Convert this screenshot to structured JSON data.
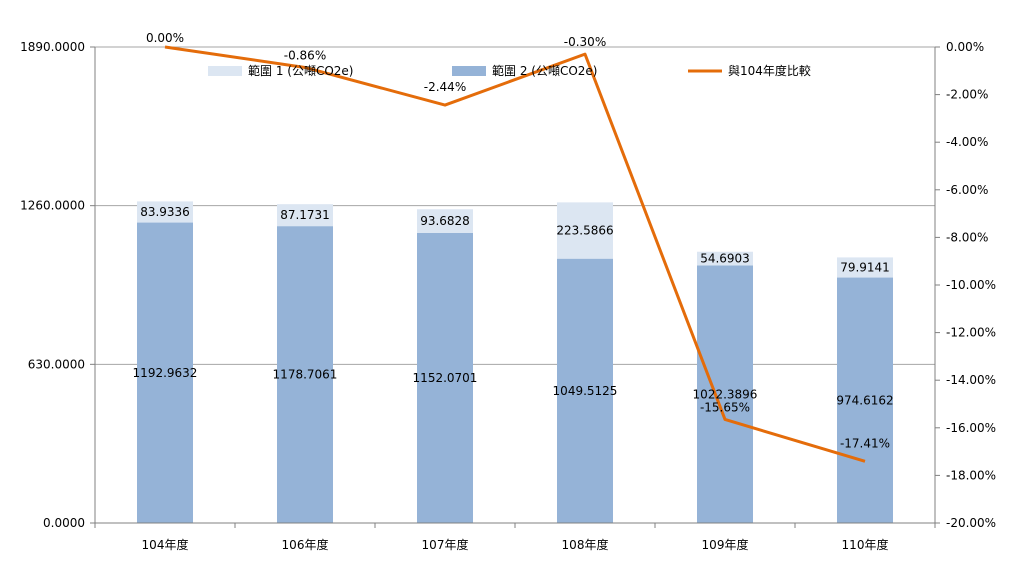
{
  "chart_data": {
    "type": "bar",
    "stacked": true,
    "categories": [
      "104年度",
      "106年度",
      "107年度",
      "108年度",
      "109年度",
      "110年度"
    ],
    "series": [
      {
        "name": "範圍 2 (公噸CO2e)",
        "kind": "bar",
        "axis": "left",
        "color": "#95b3d7",
        "values": [
          1192.9632,
          1178.7061,
          1152.0701,
          1049.5125,
          1022.3896,
          974.6162
        ],
        "labels": [
          "1192.9632",
          "1178.7061",
          "1152.0701",
          "1049.5125",
          "1022.3896",
          "974.6162"
        ]
      },
      {
        "name": "範圍 1 (公噸CO2e)",
        "kind": "bar",
        "axis": "left",
        "color": "#dce6f2",
        "values": [
          83.9336,
          87.1731,
          93.6828,
          223.5866,
          54.6903,
          79.9141
        ],
        "labels": [
          "83.9336",
          "87.1731",
          "93.6828",
          "223.5866",
          "54.6903",
          "79.9141"
        ]
      },
      {
        "name": "與104年度比較",
        "kind": "line",
        "axis": "right",
        "color": "#e46c0a",
        "values": [
          0.0,
          -0.86,
          -2.44,
          -0.3,
          -15.65,
          -17.41
        ],
        "labels": [
          "0.00%",
          "-0.86%",
          "-2.44%",
          "-0.30%",
          "-15.65%",
          "-17.41%"
        ]
      }
    ],
    "y_left": {
      "min": 0,
      "max": 1890,
      "ticks": [
        "0.0000",
        "630.0000",
        "1260.0000",
        "1890.0000"
      ]
    },
    "y_right": {
      "min": -20,
      "max": 0,
      "ticks": [
        "0.00%",
        "-2.00%",
        "-4.00%",
        "-6.00%",
        "-8.00%",
        "-10.00%",
        "-12.00%",
        "-14.00%",
        "-16.00%",
        "-18.00%",
        "-20.00%"
      ]
    },
    "legend_position": "top",
    "grid": "horizontal at left-axis ticks"
  }
}
